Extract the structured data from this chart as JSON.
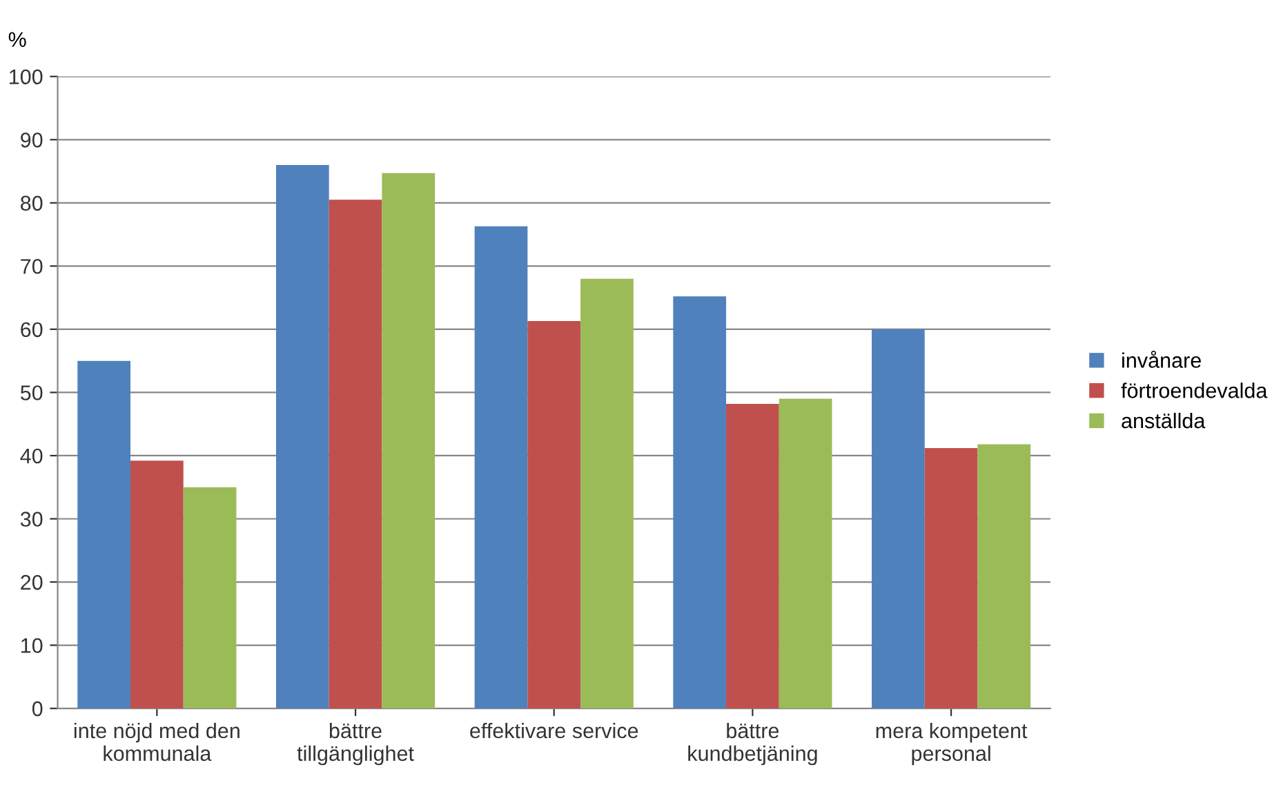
{
  "chart_data": {
    "type": "bar",
    "ylabel": "%",
    "categories": [
      "inte nöjd med den\nkommunala",
      "bättre\ntillgänglighet",
      "effektivare service",
      "bättre\nkundbetjäning",
      "mera kompetent\npersonal"
    ],
    "series": [
      {
        "name": "invånare",
        "color": "#4f81bd",
        "values": [
          55,
          86,
          76.3,
          65.2,
          60
        ]
      },
      {
        "name": "förtroendevalda",
        "color": "#c0504d",
        "values": [
          39.2,
          80.5,
          61.3,
          48.2,
          41.2
        ]
      },
      {
        "name": "anställda",
        "color": "#9bbb59",
        "values": [
          35,
          84.7,
          68,
          49,
          41.8
        ]
      }
    ],
    "ylim": [
      0,
      100
    ],
    "yticks": [
      0,
      10,
      20,
      30,
      40,
      50,
      60,
      70,
      80,
      90,
      100
    ],
    "grid": "y",
    "legend": "right"
  }
}
